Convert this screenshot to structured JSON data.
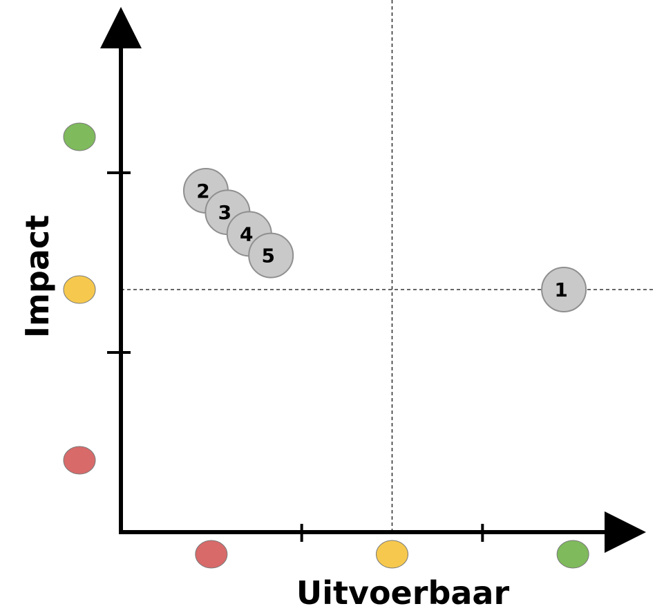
{
  "chart_data": {
    "type": "scatter",
    "title": "",
    "xlabel": "Uitvoerbaar",
    "ylabel": "Impact",
    "xlim": [
      0,
      3
    ],
    "ylim": [
      0,
      3
    ],
    "x_tick_positions": [
      1,
      2
    ],
    "y_tick_positions": [
      1,
      2
    ],
    "x_scale_markers": [
      {
        "level": "laag",
        "value": 0.5,
        "color": "#d86a6a"
      },
      {
        "level": "midden",
        "value": 1.5,
        "color": "#f6c94e"
      },
      {
        "level": "hoog",
        "value": 2.5,
        "color": "#7fba5c"
      }
    ],
    "y_scale_markers": [
      {
        "level": "laag",
        "value": 0.4,
        "color": "#d86a6a"
      },
      {
        "level": "midden",
        "value": 1.35,
        "color": "#f6c94e"
      },
      {
        "level": "hoog",
        "value": 2.2,
        "color": "#7fba5c"
      }
    ],
    "reference_lines": {
      "x": 1.5,
      "y": 1.35
    },
    "grid": false,
    "points": [
      {
        "label": "1",
        "x": 2.45,
        "y": 1.35
      },
      {
        "label": "2",
        "x": 0.47,
        "y": 1.9
      },
      {
        "label": "3",
        "x": 0.59,
        "y": 1.78
      },
      {
        "label": "4",
        "x": 0.71,
        "y": 1.66
      },
      {
        "label": "5",
        "x": 0.83,
        "y": 1.54
      }
    ],
    "colors": {
      "axis": "#000000",
      "point_fill": "#c9c9c9",
      "point_stroke": "#8f8f8f",
      "reference_line": "#333333"
    }
  }
}
